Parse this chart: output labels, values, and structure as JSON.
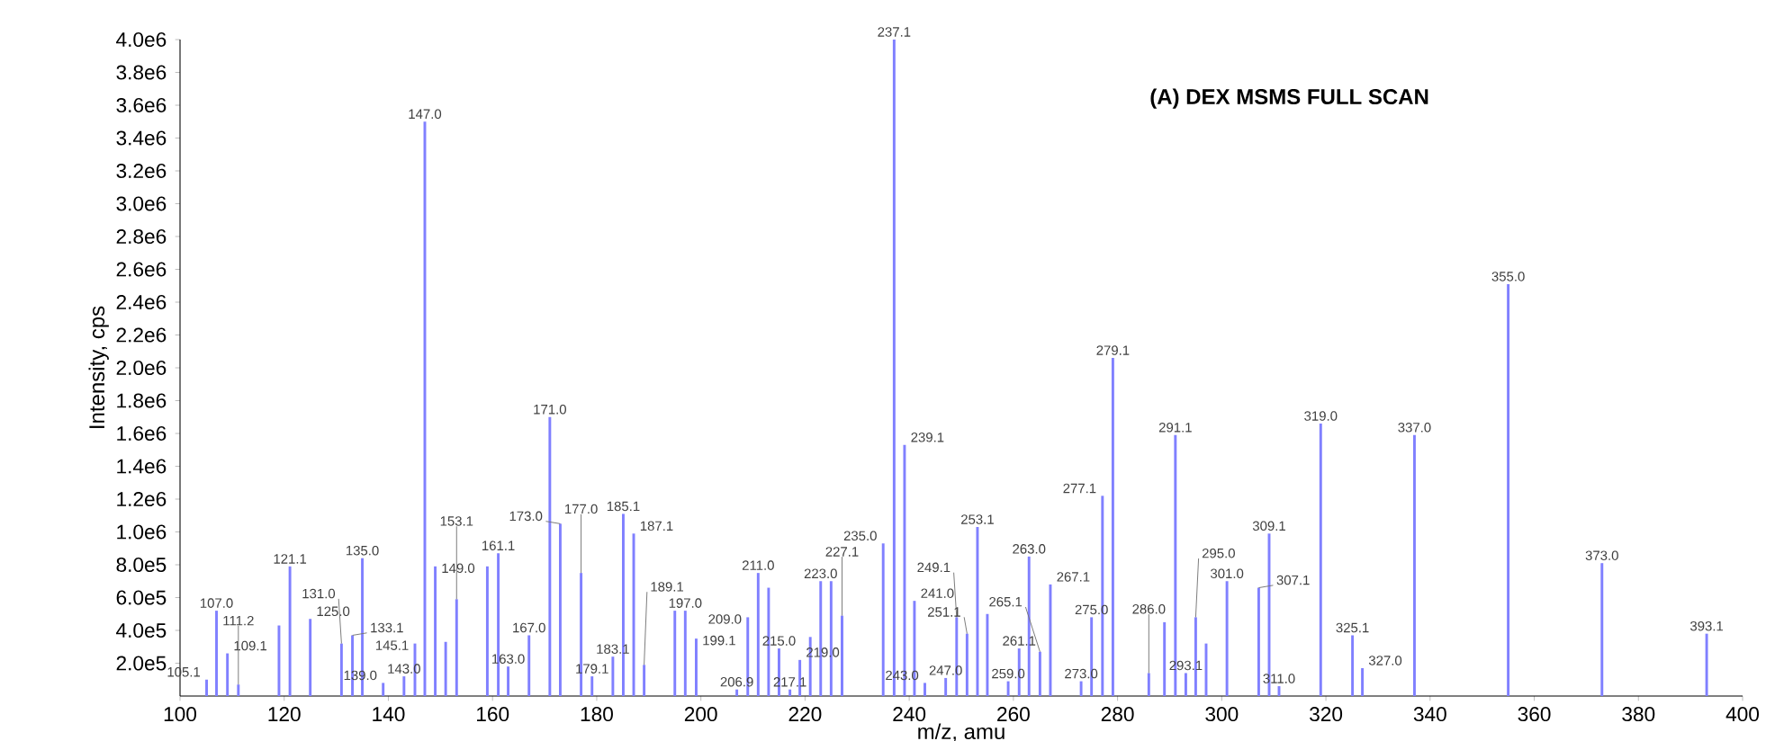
{
  "chart_data": {
    "type": "bar",
    "title": "(A) DEX MSMS FULL SCAN",
    "xlabel": "m/z, amu",
    "ylabel": "Intensity, cps",
    "x": [
      105.1,
      107.0,
      109.1,
      111.2,
      119.0,
      121.1,
      125.0,
      131.0,
      133.1,
      135.0,
      139.0,
      143.0,
      145.1,
      147.0,
      149.0,
      151.0,
      153.1,
      159.0,
      161.1,
      163.0,
      167.0,
      171.0,
      173.0,
      177.0,
      179.1,
      183.1,
      185.1,
      187.1,
      189.1,
      195.0,
      197.0,
      199.1,
      206.9,
      209.0,
      211.0,
      213.0,
      215.0,
      217.1,
      219.0,
      221.0,
      223.0,
      225.0,
      227.1,
      235.0,
      237.1,
      239.1,
      241.0,
      243.0,
      247.0,
      249.1,
      251.1,
      253.1,
      255.0,
      259.0,
      261.1,
      263.0,
      265.1,
      267.1,
      273.0,
      275.0,
      277.1,
      279.1,
      286.0,
      289.0,
      291.1,
      293.1,
      295.0,
      297.0,
      301.0,
      307.1,
      309.1,
      311.0,
      319.0,
      325.1,
      327.0,
      337.0,
      355.0,
      373.0,
      393.1
    ],
    "values": [
      100000,
      520000,
      260000,
      70000,
      430000,
      790000,
      470000,
      320000,
      370000,
      840000,
      80000,
      120000,
      320000,
      3500000,
      790000,
      330000,
      590000,
      790000,
      870000,
      180000,
      370000,
      1700000,
      1050000,
      750000,
      120000,
      240000,
      1110000,
      990000,
      190000,
      520000,
      520000,
      350000,
      40000,
      480000,
      750000,
      660000,
      290000,
      40000,
      220000,
      360000,
      700000,
      700000,
      490000,
      930000,
      4000000,
      1530000,
      580000,
      80000,
      110000,
      480000,
      380000,
      1030000,
      500000,
      90000,
      290000,
      850000,
      270000,
      680000,
      90000,
      480000,
      1220000,
      2060000,
      140000,
      450000,
      1590000,
      140000,
      480000,
      320000,
      700000,
      660000,
      990000,
      60000,
      1660000,
      370000,
      170000,
      1590000,
      2510000,
      810000,
      380000
    ],
    "annotations": [
      {
        "text": "105.1",
        "x": 105.1,
        "y": 100000
      },
      {
        "text": "107.0",
        "x": 107.0,
        "y": 520000
      },
      {
        "text": "109.1",
        "x": 109.1,
        "y": 260000
      },
      {
        "text": "111.2",
        "x": 111.2,
        "y": 70000
      },
      {
        "text": "121.1",
        "x": 121.1,
        "y": 790000
      },
      {
        "text": "125.0",
        "x": 125.0,
        "y": 470000
      },
      {
        "text": "131.0",
        "x": 131.0,
        "y": 320000
      },
      {
        "text": "133.1",
        "x": 133.1,
        "y": 370000
      },
      {
        "text": "135.0",
        "x": 135.0,
        "y": 840000
      },
      {
        "text": "139.0",
        "x": 139.0,
        "y": 80000
      },
      {
        "text": "143.0",
        "x": 143.0,
        "y": 120000
      },
      {
        "text": "145.1",
        "x": 145.1,
        "y": 320000
      },
      {
        "text": "147.0",
        "x": 147.0,
        "y": 3500000
      },
      {
        "text": "149.0",
        "x": 149.0,
        "y": 790000
      },
      {
        "text": "153.1",
        "x": 153.1,
        "y": 590000
      },
      {
        "text": "161.1",
        "x": 161.1,
        "y": 870000
      },
      {
        "text": "163.0",
        "x": 163.0,
        "y": 180000
      },
      {
        "text": "167.0",
        "x": 167.0,
        "y": 370000
      },
      {
        "text": "171.0",
        "x": 171.0,
        "y": 1700000
      },
      {
        "text": "173.0",
        "x": 173.0,
        "y": 1050000
      },
      {
        "text": "177.0",
        "x": 177.0,
        "y": 750000
      },
      {
        "text": "179.1",
        "x": 179.1,
        "y": 120000
      },
      {
        "text": "183.1",
        "x": 183.1,
        "y": 240000
      },
      {
        "text": "185.1",
        "x": 185.1,
        "y": 1110000
      },
      {
        "text": "187.1",
        "x": 187.1,
        "y": 990000
      },
      {
        "text": "189.1",
        "x": 189.1,
        "y": 190000
      },
      {
        "text": "197.0",
        "x": 197.0,
        "y": 520000
      },
      {
        "text": "199.1",
        "x": 199.1,
        "y": 350000
      },
      {
        "text": "206.9",
        "x": 206.9,
        "y": 40000
      },
      {
        "text": "209.0",
        "x": 209.0,
        "y": 480000
      },
      {
        "text": "211.0",
        "x": 211.0,
        "y": 750000
      },
      {
        "text": "215.0",
        "x": 215.0,
        "y": 290000
      },
      {
        "text": "217.1",
        "x": 217.1,
        "y": 40000
      },
      {
        "text": "219.0",
        "x": 219.0,
        "y": 220000
      },
      {
        "text": "223.0",
        "x": 223.0,
        "y": 700000
      },
      {
        "text": "227.1",
        "x": 227.1,
        "y": 490000
      },
      {
        "text": "235.0",
        "x": 235.0,
        "y": 930000
      },
      {
        "text": "237.1",
        "x": 237.1,
        "y": 4000000
      },
      {
        "text": "239.1",
        "x": 239.1,
        "y": 1530000
      },
      {
        "text": "241.0",
        "x": 241.0,
        "y": 580000
      },
      {
        "text": "243.0",
        "x": 243.0,
        "y": 80000
      },
      {
        "text": "247.0",
        "x": 247.0,
        "y": 110000
      },
      {
        "text": "249.1",
        "x": 249.1,
        "y": 480000
      },
      {
        "text": "251.1",
        "x": 251.1,
        "y": 380000
      },
      {
        "text": "253.1",
        "x": 253.1,
        "y": 1030000
      },
      {
        "text": "259.0",
        "x": 259.0,
        "y": 90000
      },
      {
        "text": "261.1",
        "x": 261.1,
        "y": 290000
      },
      {
        "text": "263.0",
        "x": 263.0,
        "y": 850000
      },
      {
        "text": "265.1",
        "x": 265.1,
        "y": 270000
      },
      {
        "text": "267.1",
        "x": 267.1,
        "y": 680000
      },
      {
        "text": "273.0",
        "x": 273.0,
        "y": 90000
      },
      {
        "text": "275.0",
        "x": 275.0,
        "y": 480000
      },
      {
        "text": "277.1",
        "x": 277.1,
        "y": 1220000
      },
      {
        "text": "279.1",
        "x": 279.1,
        "y": 2060000
      },
      {
        "text": "286.0",
        "x": 286.0,
        "y": 140000
      },
      {
        "text": "291.1",
        "x": 291.1,
        "y": 1590000
      },
      {
        "text": "293.1",
        "x": 293.1,
        "y": 140000
      },
      {
        "text": "295.0",
        "x": 295.0,
        "y": 480000
      },
      {
        "text": "301.0",
        "x": 301.0,
        "y": 700000
      },
      {
        "text": "307.1",
        "x": 307.1,
        "y": 660000
      },
      {
        "text": "309.1",
        "x": 309.1,
        "y": 990000
      },
      {
        "text": "311.0",
        "x": 311.0,
        "y": 60000
      },
      {
        "text": "319.0",
        "x": 319.0,
        "y": 1660000
      },
      {
        "text": "325.1",
        "x": 325.1,
        "y": 370000
      },
      {
        "text": "327.0",
        "x": 327.0,
        "y": 170000
      },
      {
        "text": "337.0",
        "x": 337.0,
        "y": 1590000
      },
      {
        "text": "355.0",
        "x": 355.0,
        "y": 2510000
      },
      {
        "text": "373.0",
        "x": 373.0,
        "y": 810000
      },
      {
        "text": "393.1",
        "x": 393.1,
        "y": 380000
      }
    ],
    "color": "#8080ff",
    "xlim": [
      100,
      400
    ],
    "xticks": [
      100,
      120,
      140,
      160,
      180,
      200,
      220,
      240,
      260,
      280,
      300,
      320,
      340,
      360,
      380,
      400
    ],
    "ylim": [
      0,
      4000000
    ],
    "yticks": [
      {
        "value": 200000,
        "label": "2.0e5"
      },
      {
        "value": 400000,
        "label": "4.0e5"
      },
      {
        "value": 600000,
        "label": "6.0e5"
      },
      {
        "value": 800000,
        "label": "8.0e5"
      },
      {
        "value": 1000000,
        "label": "1.0e6"
      },
      {
        "value": 1200000,
        "label": "1.2e6"
      },
      {
        "value": 1400000,
        "label": "1.4e6"
      },
      {
        "value": 1600000,
        "label": "1.6e6"
      },
      {
        "value": 1800000,
        "label": "1.8e6"
      },
      {
        "value": 2000000,
        "label": "2.0e6"
      },
      {
        "value": 2200000,
        "label": "2.2e6"
      },
      {
        "value": 2400000,
        "label": "2.4e6"
      },
      {
        "value": 2600000,
        "label": "2.6e6"
      },
      {
        "value": 2800000,
        "label": "2.8e6"
      },
      {
        "value": 3000000,
        "label": "3.0e6"
      },
      {
        "value": 3200000,
        "label": "3.2e6"
      },
      {
        "value": 3400000,
        "label": "3.4e6"
      },
      {
        "value": 3600000,
        "label": "3.6e6"
      },
      {
        "value": 3800000,
        "label": "3.8e6"
      },
      {
        "value": 4000000,
        "label": "4.0e6"
      }
    ]
  }
}
